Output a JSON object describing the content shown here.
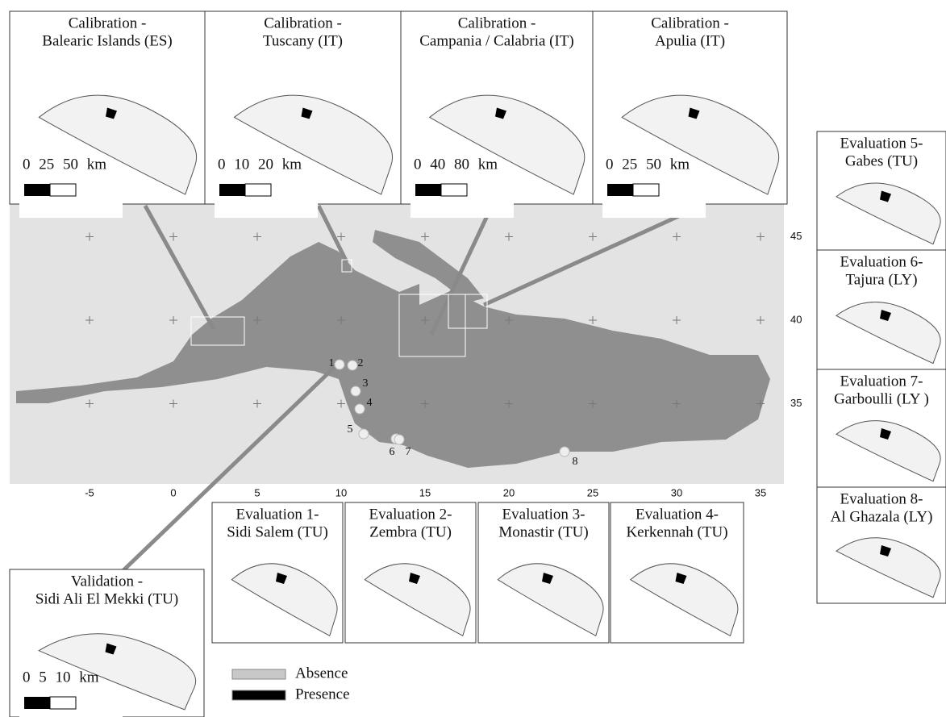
{
  "calibration_panels": [
    {
      "title": [
        "Calibration -",
        "Balearic Islands (ES)"
      ],
      "scale": "0 25 50 km"
    },
    {
      "title": [
        "Calibration -",
        "Tuscany (IT)"
      ],
      "scale": "0 10 20 km"
    },
    {
      "title": [
        "Calibration -",
        "Campania / Calabria (IT)"
      ],
      "scale": "0 40 80 km"
    },
    {
      "title": [
        "Calibration -",
        "Apulia (IT)"
      ],
      "scale": "0 25 50 km"
    }
  ],
  "evaluation_panels": [
    {
      "title": [
        "Evaluation 1-",
        "Sidi Salem (TU)"
      ]
    },
    {
      "title": [
        "Evaluation 2-",
        "Zembra (TU)"
      ]
    },
    {
      "title": [
        "Evaluation 3-",
        "Monastir (TU)"
      ]
    },
    {
      "title": [
        "Evaluation 4-",
        "Kerkennah (TU)"
      ]
    },
    {
      "title": [
        "Evaluation 5-",
        "Gabes (TU)"
      ]
    },
    {
      "title": [
        "Evaluation 6-",
        "Tajura (LY)"
      ]
    },
    {
      "title": [
        "Evaluation 7-",
        "Garboulli (LY )"
      ]
    },
    {
      "title": [
        "Evaluation 8-",
        "Al Ghazala (LY)"
      ]
    }
  ],
  "validation_panel": {
    "title": [
      "Validation -",
      "Sidi Ali El Mekki (TU)"
    ],
    "scale": "0 5 10 km"
  },
  "map": {
    "x_ticks": [
      -5,
      0,
      5,
      10,
      15,
      20,
      25,
      30,
      35
    ],
    "y_ticks": [
      45,
      40,
      35
    ],
    "site_labels": [
      "1",
      "2",
      "3",
      "4",
      "5",
      "6",
      "7",
      "8"
    ]
  },
  "legend": [
    "Absence",
    "Presence"
  ]
}
